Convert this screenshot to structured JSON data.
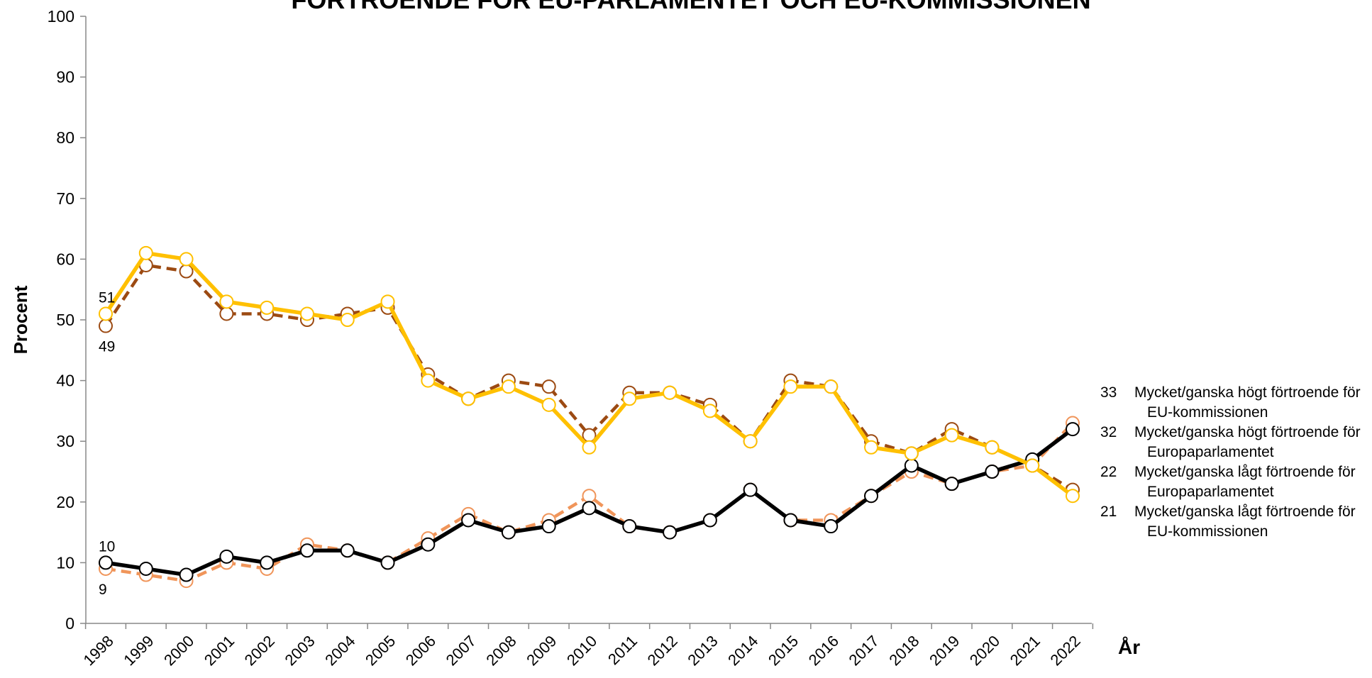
{
  "chart_data": {
    "type": "line",
    "title": "FÖRTROENDE FÖR EU-PARLAMENTET OCH EU-KOMMISSIONEN",
    "y_label": "Procent",
    "x_label": "År",
    "categories": [
      "1998",
      "1999",
      "2000",
      "2001",
      "2002",
      "2003",
      "2004",
      "2005",
      "2006",
      "2007",
      "2008",
      "2009",
      "2010",
      "2011",
      "2012",
      "2013",
      "2014",
      "2015",
      "2016",
      "2017",
      "2018",
      "2019",
      "2020",
      "2021",
      "2022"
    ],
    "ylim": [
      0,
      100
    ],
    "yticks": [
      0,
      10,
      20,
      30,
      40,
      50,
      60,
      70,
      80,
      90,
      100
    ],
    "series": [
      {
        "name": "Mycket/ganska högt förtroende för EU-kommissionen",
        "color": "#f0955a",
        "dash": true,
        "values": [
          9,
          8,
          7,
          10,
          9,
          13,
          12,
          10,
          14,
          18,
          15,
          17,
          21,
          16,
          15,
          17,
          22,
          17,
          17,
          21,
          25,
          23,
          25,
          26,
          33
        ]
      },
      {
        "name": "Mycket/ganska högt förtroende för Europaparlamentet",
        "color": "#000000",
        "dash": false,
        "values": [
          10,
          9,
          8,
          11,
          10,
          12,
          12,
          10,
          13,
          17,
          15,
          16,
          19,
          16,
          15,
          17,
          22,
          17,
          16,
          21,
          26,
          23,
          25,
          27,
          32
        ]
      },
      {
        "name": "Mycket/ganska lågt förtroende för Europaparlamentet",
        "color": "#9c4a12",
        "dash": true,
        "values": [
          49,
          59,
          58,
          51,
          51,
          50,
          51,
          52,
          41,
          37,
          40,
          39,
          31,
          38,
          38,
          36,
          30,
          40,
          39,
          30,
          28,
          32,
          29,
          26,
          22
        ]
      },
      {
        "name": "Mycket/ganska lågt förtroende för EU-kommissionen",
        "color": "#ffc000",
        "dash": false,
        "values": [
          51,
          61,
          60,
          53,
          52,
          51,
          50,
          53,
          40,
          37,
          39,
          36,
          29,
          37,
          38,
          35,
          30,
          39,
          39,
          29,
          28,
          31,
          29,
          26,
          21
        ]
      }
    ]
  }
}
